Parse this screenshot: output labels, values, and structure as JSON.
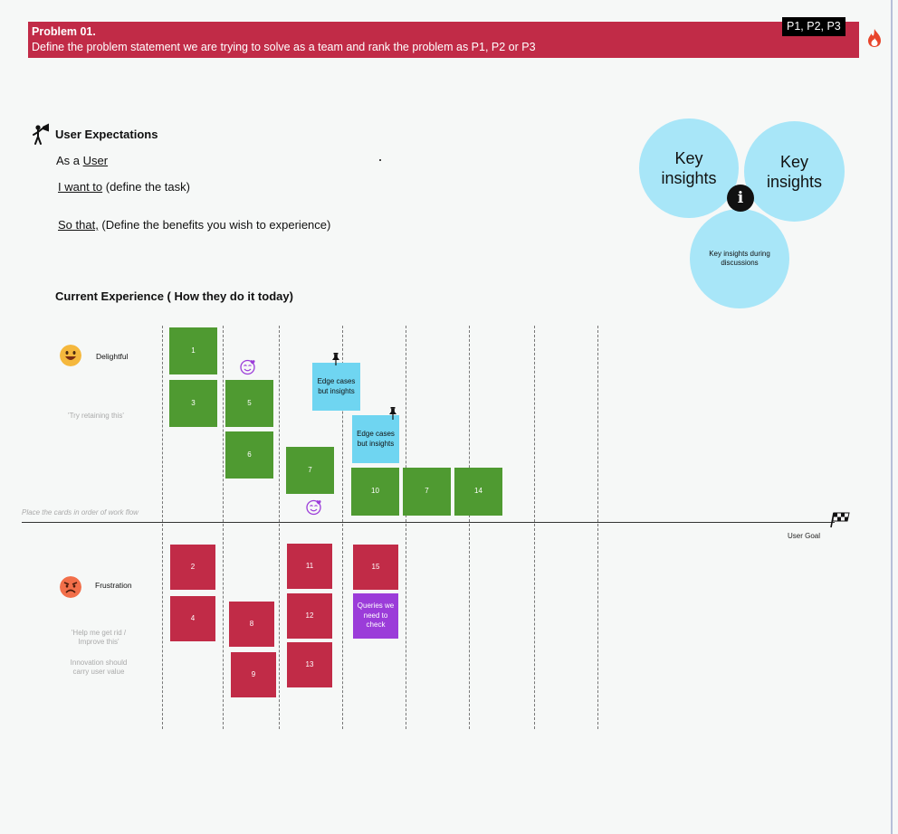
{
  "problem": {
    "title": "Problem 01.",
    "statement": "Define the problem statement we are trying to solve as a team and rank the problem as P1, P2 or P3",
    "rank_tag": "P1, P2, P3"
  },
  "user_expectations": {
    "title": "User Expectations",
    "as_a_prefix": "As a ",
    "as_a_value": "User",
    "i_want_to": "I want to",
    "i_want_to_rest": " (define the task)",
    "so_that": "So that,",
    "so_that_rest": " (Define the benefits you wish to experience)"
  },
  "insights": {
    "circle1": "Key insights",
    "circle2": "Key insights",
    "circle3": "Key insights during discussions",
    "info_glyph": "i"
  },
  "current_experience": {
    "title": "Current Experience ( How they do it today)",
    "delightful_label": "Delightful",
    "delightful_hint": "'Try retaining this'",
    "frustration_label": "Frustration",
    "frustration_hint": "'Help me get rid / Improve this'",
    "frustration_hint2": "Innovation should carry user value",
    "place_cards": "Place the cards in order of work flow",
    "user_goal": "User Goal"
  },
  "cards": {
    "g1": "1",
    "g3": "3",
    "g5": "5",
    "g6": "6",
    "g7a": "7",
    "b1": "Edge cases but insights",
    "b2": "Edge cases but insights",
    "g10": "10",
    "g7b": "7",
    "g14": "14",
    "r2": "2",
    "r4": "4",
    "r8": "8",
    "r9": "9",
    "r11": "11",
    "r12": "12",
    "r13": "13",
    "r15": "15",
    "p1": "Queries we need to check"
  },
  "colors": {
    "banner": "#c12b47",
    "green_card": "#4f9a31",
    "red_card": "#c12b47",
    "blue_card": "#6fd5f1",
    "purple_card": "#9b3cd9",
    "insight_circle": "#a8e6f8"
  },
  "icons": [
    "fire-icon",
    "megaphone-person-icon",
    "info-icon",
    "happy-face-icon",
    "angry-face-icon",
    "heart-eyes-icon",
    "pin-icon",
    "checkered-flag-icon"
  ]
}
